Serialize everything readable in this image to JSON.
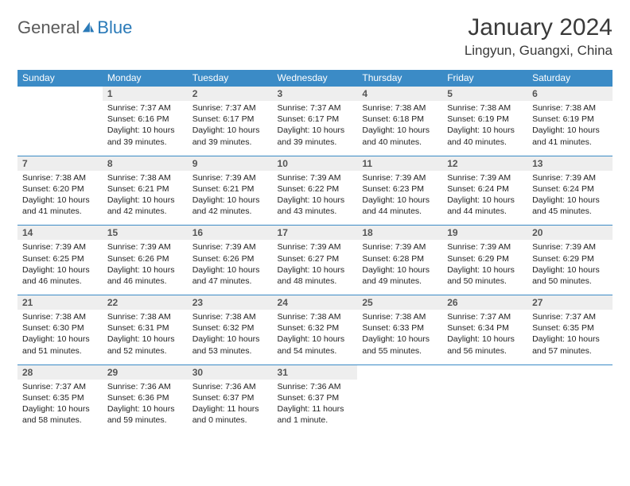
{
  "brand": {
    "part1": "General",
    "part2": "Blue",
    "color1": "#5a5a5a",
    "color2": "#2a7ab8"
  },
  "title": "January 2024",
  "location": "Lingyun, Guangxi, China",
  "header_bg": "#3b8bc6",
  "header_fg": "#ffffff",
  "daynum_bg": "#eeeeee",
  "border_color": "#3b8bc6",
  "fontsize_title": 30,
  "fontsize_location": 17,
  "fontsize_dayhead": 12,
  "fontsize_daynum": 12,
  "fontsize_body": 10.5,
  "day_names": [
    "Sunday",
    "Monday",
    "Tuesday",
    "Wednesday",
    "Thursday",
    "Friday",
    "Saturday"
  ],
  "weeks": [
    [
      null,
      {
        "n": "1",
        "sunrise": "7:37 AM",
        "sunset": "6:16 PM",
        "dayh": "10",
        "daym": "39"
      },
      {
        "n": "2",
        "sunrise": "7:37 AM",
        "sunset": "6:17 PM",
        "dayh": "10",
        "daym": "39"
      },
      {
        "n": "3",
        "sunrise": "7:37 AM",
        "sunset": "6:17 PM",
        "dayh": "10",
        "daym": "39"
      },
      {
        "n": "4",
        "sunrise": "7:38 AM",
        "sunset": "6:18 PM",
        "dayh": "10",
        "daym": "40"
      },
      {
        "n": "5",
        "sunrise": "7:38 AM",
        "sunset": "6:19 PM",
        "dayh": "10",
        "daym": "40"
      },
      {
        "n": "6",
        "sunrise": "7:38 AM",
        "sunset": "6:19 PM",
        "dayh": "10",
        "daym": "41"
      }
    ],
    [
      {
        "n": "7",
        "sunrise": "7:38 AM",
        "sunset": "6:20 PM",
        "dayh": "10",
        "daym": "41"
      },
      {
        "n": "8",
        "sunrise": "7:38 AM",
        "sunset": "6:21 PM",
        "dayh": "10",
        "daym": "42"
      },
      {
        "n": "9",
        "sunrise": "7:39 AM",
        "sunset": "6:21 PM",
        "dayh": "10",
        "daym": "42"
      },
      {
        "n": "10",
        "sunrise": "7:39 AM",
        "sunset": "6:22 PM",
        "dayh": "10",
        "daym": "43"
      },
      {
        "n": "11",
        "sunrise": "7:39 AM",
        "sunset": "6:23 PM",
        "dayh": "10",
        "daym": "44"
      },
      {
        "n": "12",
        "sunrise": "7:39 AM",
        "sunset": "6:24 PM",
        "dayh": "10",
        "daym": "44"
      },
      {
        "n": "13",
        "sunrise": "7:39 AM",
        "sunset": "6:24 PM",
        "dayh": "10",
        "daym": "45"
      }
    ],
    [
      {
        "n": "14",
        "sunrise": "7:39 AM",
        "sunset": "6:25 PM",
        "dayh": "10",
        "daym": "46"
      },
      {
        "n": "15",
        "sunrise": "7:39 AM",
        "sunset": "6:26 PM",
        "dayh": "10",
        "daym": "46"
      },
      {
        "n": "16",
        "sunrise": "7:39 AM",
        "sunset": "6:26 PM",
        "dayh": "10",
        "daym": "47"
      },
      {
        "n": "17",
        "sunrise": "7:39 AM",
        "sunset": "6:27 PM",
        "dayh": "10",
        "daym": "48"
      },
      {
        "n": "18",
        "sunrise": "7:39 AM",
        "sunset": "6:28 PM",
        "dayh": "10",
        "daym": "49"
      },
      {
        "n": "19",
        "sunrise": "7:39 AM",
        "sunset": "6:29 PM",
        "dayh": "10",
        "daym": "50"
      },
      {
        "n": "20",
        "sunrise": "7:39 AM",
        "sunset": "6:29 PM",
        "dayh": "10",
        "daym": "50"
      }
    ],
    [
      {
        "n": "21",
        "sunrise": "7:38 AM",
        "sunset": "6:30 PM",
        "dayh": "10",
        "daym": "51"
      },
      {
        "n": "22",
        "sunrise": "7:38 AM",
        "sunset": "6:31 PM",
        "dayh": "10",
        "daym": "52"
      },
      {
        "n": "23",
        "sunrise": "7:38 AM",
        "sunset": "6:32 PM",
        "dayh": "10",
        "daym": "53"
      },
      {
        "n": "24",
        "sunrise": "7:38 AM",
        "sunset": "6:32 PM",
        "dayh": "10",
        "daym": "54"
      },
      {
        "n": "25",
        "sunrise": "7:38 AM",
        "sunset": "6:33 PM",
        "dayh": "10",
        "daym": "55"
      },
      {
        "n": "26",
        "sunrise": "7:37 AM",
        "sunset": "6:34 PM",
        "dayh": "10",
        "daym": "56"
      },
      {
        "n": "27",
        "sunrise": "7:37 AM",
        "sunset": "6:35 PM",
        "dayh": "10",
        "daym": "57"
      }
    ],
    [
      {
        "n": "28",
        "sunrise": "7:37 AM",
        "sunset": "6:35 PM",
        "dayh": "10",
        "daym": "58"
      },
      {
        "n": "29",
        "sunrise": "7:36 AM",
        "sunset": "6:36 PM",
        "dayh": "10",
        "daym": "59"
      },
      {
        "n": "30",
        "sunrise": "7:36 AM",
        "sunset": "6:37 PM",
        "dayh": "11",
        "daym": "0"
      },
      {
        "n": "31",
        "sunrise": "7:36 AM",
        "sunset": "6:37 PM",
        "dayh": "11",
        "daym": "1"
      },
      null,
      null,
      null
    ]
  ],
  "labels": {
    "sunrise": "Sunrise:",
    "sunset": "Sunset:",
    "daylight": "Daylight:",
    "hours": "hours",
    "and": "and",
    "minutes_singular": "minute.",
    "minutes_plural": "minutes."
  }
}
